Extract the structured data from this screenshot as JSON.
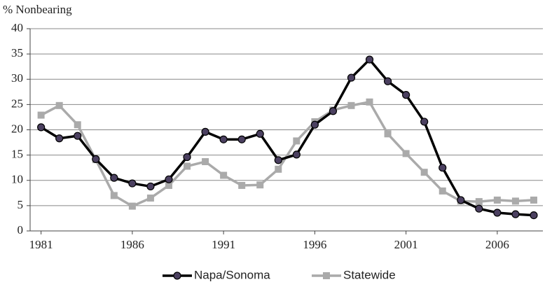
{
  "chart_data": {
    "type": "line",
    "y_label": "% Nonbearing",
    "x": [
      1981,
      1982,
      1983,
      1984,
      1985,
      1986,
      1987,
      1988,
      1989,
      1990,
      1991,
      1992,
      1993,
      1994,
      1995,
      1996,
      1997,
      1998,
      1999,
      2000,
      2001,
      2002,
      2003,
      2004,
      2005,
      2006,
      2007,
      2008
    ],
    "series": [
      {
        "name": "Napa/Sonoma",
        "color": "#000000",
        "marker_color": "#4b4060",
        "marker": "circle",
        "values": [
          20.5,
          18.3,
          18.8,
          14.2,
          10.5,
          9.4,
          8.8,
          10.2,
          14.6,
          19.6,
          18.1,
          18.1,
          19.2,
          14.0,
          15.1,
          21.0,
          23.7,
          30.3,
          33.9,
          29.6,
          26.9,
          21.6,
          12.5,
          6.1,
          4.4,
          3.6,
          3.3,
          3.1
        ]
      },
      {
        "name": "Statewide",
        "color": "#aaaaaa",
        "marker_color": "#aaaaaa",
        "marker": "square",
        "values": [
          22.9,
          24.8,
          21.0,
          14.1,
          7.0,
          4.9,
          6.5,
          9.0,
          12.8,
          13.7,
          11.0,
          9.0,
          9.1,
          12.2,
          17.8,
          21.6,
          23.9,
          24.8,
          25.5,
          19.2,
          15.3,
          11.6,
          7.9,
          5.9,
          5.8,
          6.1,
          5.9,
          6.1
        ]
      }
    ],
    "xlim": [
      1980.4,
      2008.5
    ],
    "xticks": [
      1981,
      1986,
      1991,
      1996,
      2001,
      2006
    ],
    "ylim": [
      0,
      40
    ],
    "yticks": [
      0,
      5,
      10,
      15,
      20,
      25,
      30,
      35,
      40
    ],
    "grid": true,
    "legend": "bottom"
  }
}
